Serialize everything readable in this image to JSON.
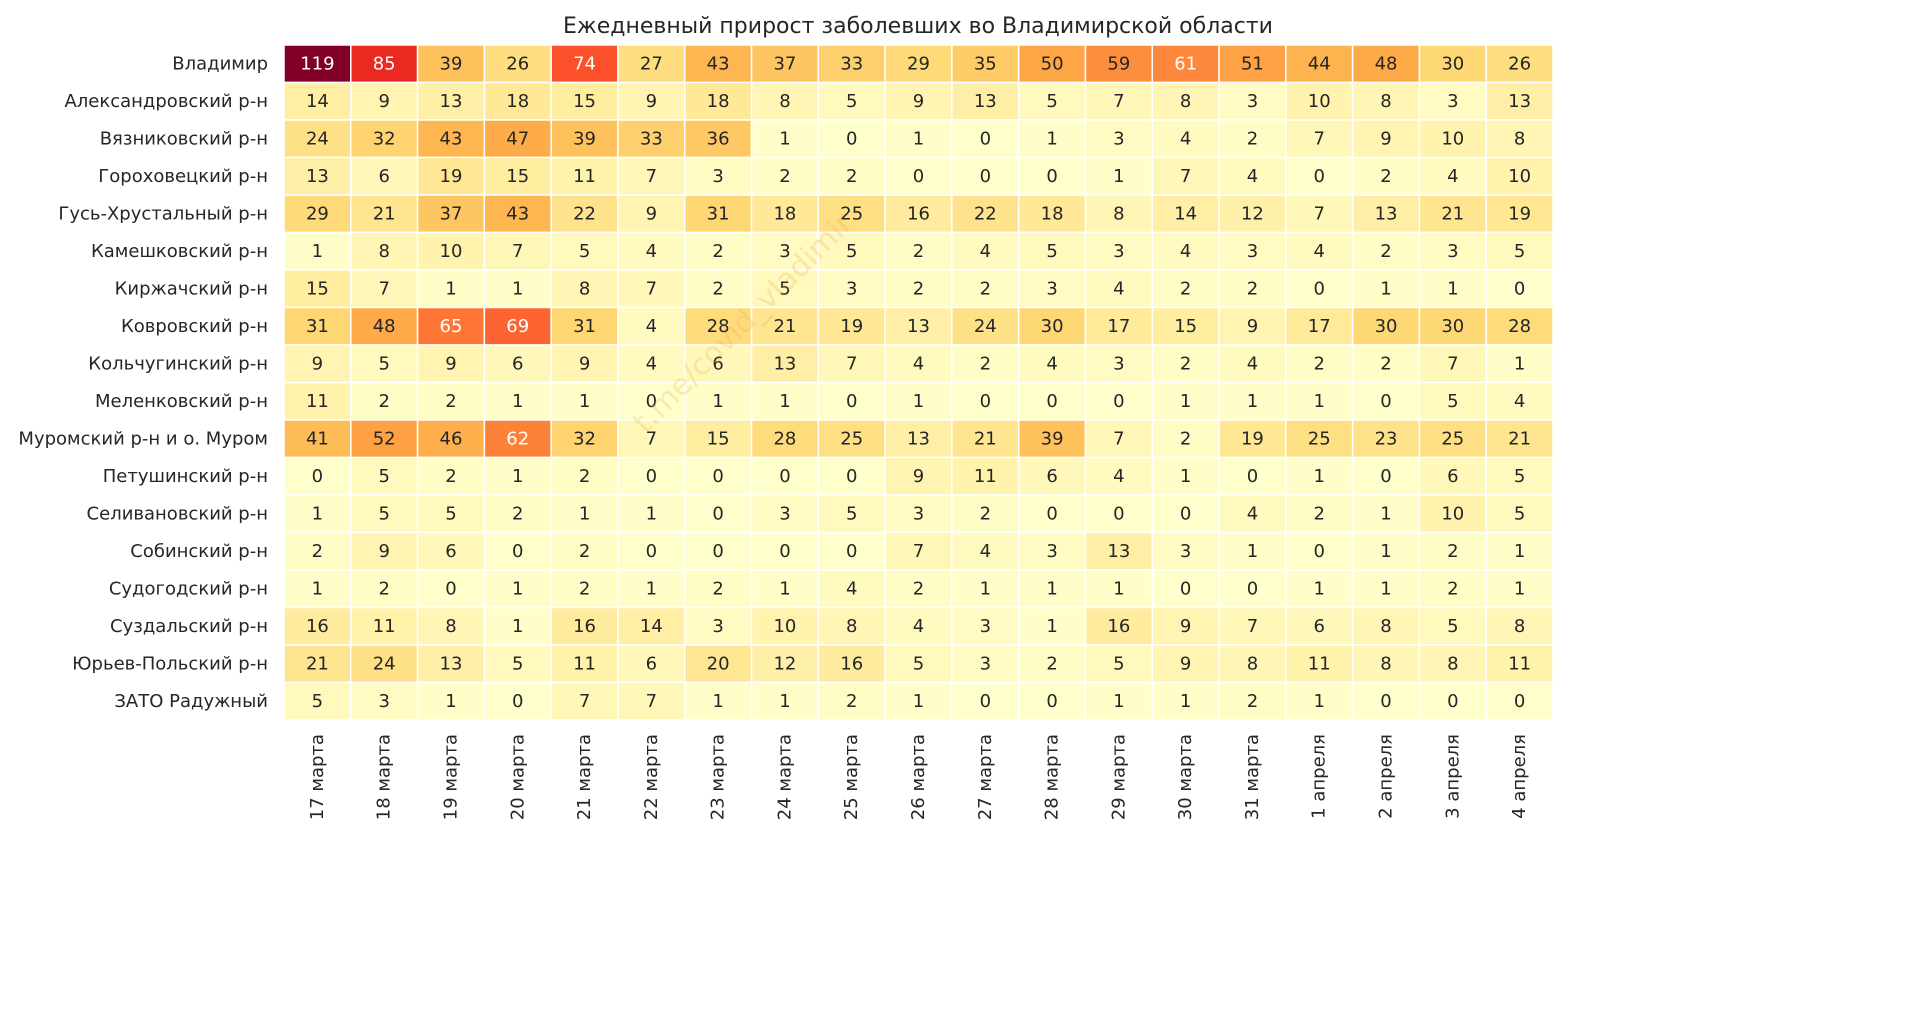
{
  "chart_data": {
    "type": "heatmap",
    "title": "Ежедневный прирост заболевших во Владимирской области",
    "watermark": "t.me/covid_vladimir",
    "xlabel": "",
    "ylabel": "",
    "colorscale": "YlOrRd",
    "vmin": 0,
    "vmax": 119,
    "columns": [
      "17 марта",
      "18 марта",
      "19 марта",
      "20 марта",
      "21 марта",
      "22 марта",
      "23 марта",
      "24 марта",
      "25 марта",
      "26 марта",
      "27 марта",
      "28 марта",
      "29 марта",
      "30 марта",
      "31 марта",
      "1 апреля",
      "2 апреля",
      "3 апреля",
      "4 апреля"
    ],
    "rows": [
      {
        "name": "Владимир",
        "values": [
          119,
          85,
          39,
          26,
          74,
          27,
          43,
          37,
          33,
          29,
          35,
          50,
          59,
          61,
          51,
          44,
          48,
          30,
          26
        ]
      },
      {
        "name": "Александровский р-н",
        "values": [
          14,
          9,
          13,
          18,
          15,
          9,
          18,
          8,
          5,
          9,
          13,
          5,
          7,
          8,
          3,
          10,
          8,
          3,
          13
        ]
      },
      {
        "name": "Вязниковский р-н",
        "values": [
          24,
          32,
          43,
          47,
          39,
          33,
          36,
          1,
          0,
          1,
          0,
          1,
          3,
          4,
          2,
          7,
          9,
          10,
          8
        ]
      },
      {
        "name": "Гороховецкий р-н",
        "values": [
          13,
          6,
          19,
          15,
          11,
          7,
          3,
          2,
          2,
          0,
          0,
          0,
          1,
          7,
          4,
          0,
          2,
          4,
          10
        ]
      },
      {
        "name": "Гусь-Хрустальный р-н",
        "values": [
          29,
          21,
          37,
          43,
          22,
          9,
          31,
          18,
          25,
          16,
          22,
          18,
          8,
          14,
          12,
          7,
          13,
          21,
          19
        ]
      },
      {
        "name": "Камешковский р-н",
        "values": [
          1,
          8,
          10,
          7,
          5,
          4,
          2,
          3,
          5,
          2,
          4,
          5,
          3,
          4,
          3,
          4,
          2,
          3,
          5
        ]
      },
      {
        "name": "Киржачский р-н",
        "values": [
          15,
          7,
          1,
          1,
          8,
          7,
          2,
          5,
          3,
          2,
          2,
          3,
          4,
          2,
          2,
          0,
          1,
          1,
          0
        ]
      },
      {
        "name": "Ковровский р-н",
        "values": [
          31,
          48,
          65,
          69,
          31,
          4,
          28,
          21,
          19,
          13,
          24,
          30,
          17,
          15,
          9,
          17,
          30,
          30,
          28
        ]
      },
      {
        "name": "Кольчугинский р-н",
        "values": [
          9,
          5,
          9,
          6,
          9,
          4,
          6,
          13,
          7,
          4,
          2,
          4,
          3,
          2,
          4,
          2,
          2,
          7,
          1
        ]
      },
      {
        "name": "Меленковский р-н",
        "values": [
          11,
          2,
          2,
          1,
          1,
          0,
          1,
          1,
          0,
          1,
          0,
          0,
          0,
          1,
          1,
          1,
          0,
          5,
          4
        ]
      },
      {
        "name": "Муромский р-н и о. Муром",
        "values": [
          41,
          52,
          46,
          62,
          32,
          7,
          15,
          28,
          25,
          13,
          21,
          39,
          7,
          2,
          19,
          25,
          23,
          25,
          21
        ]
      },
      {
        "name": "Петушинский р-н",
        "values": [
          0,
          5,
          2,
          1,
          2,
          0,
          0,
          0,
          0,
          9,
          11,
          6,
          4,
          1,
          0,
          1,
          0,
          6,
          5
        ]
      },
      {
        "name": "Селивановский р-н",
        "values": [
          1,
          5,
          5,
          2,
          1,
          1,
          0,
          3,
          5,
          3,
          2,
          0,
          0,
          0,
          4,
          2,
          1,
          10,
          5
        ]
      },
      {
        "name": "Собинский р-н",
        "values": [
          2,
          9,
          6,
          0,
          2,
          0,
          0,
          0,
          0,
          7,
          4,
          3,
          13,
          3,
          1,
          0,
          1,
          2,
          1
        ]
      },
      {
        "name": "Судогодский р-н",
        "values": [
          1,
          2,
          0,
          1,
          2,
          1,
          2,
          1,
          4,
          2,
          1,
          1,
          1,
          0,
          0,
          1,
          1,
          2,
          1
        ]
      },
      {
        "name": "Суздальский р-н",
        "values": [
          16,
          11,
          8,
          1,
          16,
          14,
          3,
          10,
          8,
          4,
          3,
          1,
          16,
          9,
          7,
          6,
          8,
          5,
          8
        ]
      },
      {
        "name": "Юрьев-Польский р-н",
        "values": [
          21,
          24,
          13,
          5,
          11,
          6,
          20,
          12,
          16,
          5,
          3,
          2,
          5,
          9,
          8,
          11,
          8,
          8,
          11
        ]
      },
      {
        "name": "ЗАТО Радужный",
        "values": [
          5,
          3,
          1,
          0,
          7,
          7,
          1,
          1,
          2,
          1,
          0,
          0,
          1,
          1,
          2,
          1,
          0,
          0,
          0
        ]
      }
    ]
  }
}
